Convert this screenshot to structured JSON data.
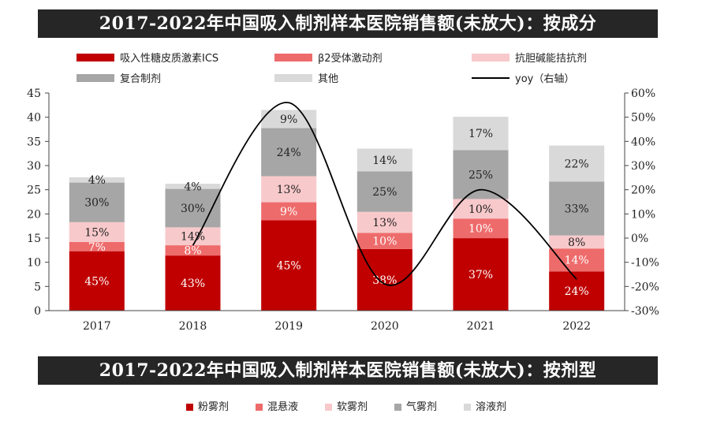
{
  "colors": {
    "ics": "#c00000",
    "beta2": "#ee6b6b",
    "anticholinergic": "#f8c9cb",
    "combination": "#a6a6a6",
    "other": "#d9d9d9",
    "yoy": "#000000",
    "banner_bg": "#262626"
  },
  "chart_data": {
    "type": "bar",
    "title": "2017-2022年中国吸入制剂样本医院销售额(未放大)：按成分",
    "categories": [
      "2017",
      "2018",
      "2019",
      "2020",
      "2021",
      "2022"
    ],
    "totals": [
      27.3,
      26.5,
      41.5,
      33.5,
      40.5,
      33.8
    ],
    "y_left": {
      "min": 0,
      "max": 45,
      "step": 5,
      "ticks": [
        "0",
        "5",
        "10",
        "15",
        "20",
        "25",
        "30",
        "35",
        "40",
        "45"
      ]
    },
    "y_right": {
      "min": -30,
      "max": 60,
      "step": 10,
      "ticks": [
        "-30%",
        "-20%",
        "-10%",
        "0%",
        "10%",
        "20%",
        "30%",
        "40%",
        "50%",
        "60%"
      ]
    },
    "series": [
      {
        "name": "吸入性糖皮质激素ICS",
        "color_key": "ics",
        "shares": [
          45,
          43,
          45,
          38,
          37,
          24
        ],
        "labels": [
          "45%",
          "43%",
          "45%",
          "38%",
          "37%",
          "24%"
        ]
      },
      {
        "name": "β2受体激动剂",
        "color_key": "beta2",
        "shares": [
          7,
          8,
          9,
          10,
          10,
          14
        ],
        "labels": [
          "7%",
          "8%",
          "9%",
          "10%",
          "10%",
          "14%"
        ]
      },
      {
        "name": "抗胆碱能拮抗剂",
        "color_key": "anticholinergic",
        "shares": [
          15,
          14,
          13,
          13,
          10,
          8
        ],
        "labels": [
          "15%",
          "14%",
          "13%",
          "13%",
          "10%",
          "8%"
        ]
      },
      {
        "name": "复合制剂",
        "color_key": "combination",
        "shares": [
          30,
          30,
          24,
          25,
          25,
          33
        ],
        "labels": [
          "30%",
          "30%",
          "24%",
          "25%",
          "25%",
          "33%"
        ]
      },
      {
        "name": "其他",
        "color_key": "other",
        "shares": [
          4,
          4,
          9,
          14,
          17,
          22
        ],
        "labels": [
          "4%",
          "4%",
          "9%",
          "14%",
          "17%",
          "22%"
        ]
      }
    ],
    "line": {
      "name": "yoy（右轴）",
      "axis": "right",
      "x": [
        "2018",
        "2019",
        "2020",
        "2021",
        "2022"
      ],
      "values": [
        -3,
        56,
        -19,
        20,
        -17
      ]
    },
    "legend_position": "top"
  },
  "second_section": {
    "title": "2017-2022年中国吸入制剂样本医院销售额(未放大)：按剂型",
    "legend": [
      {
        "name": "粉雾剂",
        "color": "#c00000"
      },
      {
        "name": "混悬液",
        "color": "#ee6b6b"
      },
      {
        "name": "软雾剂",
        "color": "#f8c9cb"
      },
      {
        "name": "气雾剂",
        "color": "#a6a6a6"
      },
      {
        "name": "溶液剂",
        "color": "#d9d9d9"
      }
    ]
  }
}
